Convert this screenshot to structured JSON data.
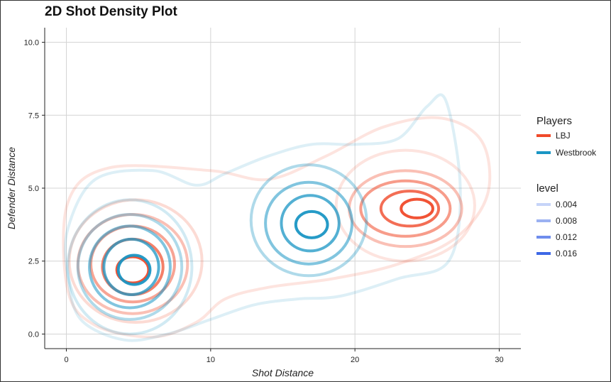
{
  "chart_data": {
    "type": "contour",
    "title": "2D Shot Density Plot",
    "xlabel": "Shot Distance",
    "ylabel": "Defender Distance",
    "xlim": [
      -1.5,
      31.5
    ],
    "ylim": [
      -0.5,
      10.5
    ],
    "x_ticks": [
      0,
      10,
      20,
      30
    ],
    "y_ticks": [
      0.0,
      2.5,
      5.0,
      7.5,
      10.0
    ],
    "x_tick_labels": [
      "0",
      "10",
      "20",
      "30"
    ],
    "y_tick_labels": [
      "0.0",
      "2.5",
      "5.0",
      "7.5",
      "10.0"
    ],
    "grid": true,
    "legend_position": "right",
    "players_legend": {
      "title": "Players",
      "entries": [
        {
          "label": "LBJ",
          "color": "#f04a2a"
        },
        {
          "label": "Westbrook",
          "color": "#1a96c4"
        }
      ]
    },
    "level_legend": {
      "title": "level",
      "entries": [
        {
          "label": "0.004",
          "color": "#c6d4f8"
        },
        {
          "label": "0.008",
          "color": "#9bb1f2"
        },
        {
          "label": "0.012",
          "color": "#6f8ded"
        },
        {
          "label": "0.016",
          "color": "#3d68e6"
        }
      ]
    },
    "series": [
      {
        "name": "LBJ",
        "color": "#f04a2a",
        "contours": [
          {
            "cx": 4.8,
            "cy": 2.5,
            "rx": 4.6,
            "ry": 2.1,
            "opacity": 0.2
          },
          {
            "cx": 4.6,
            "cy": 2.4,
            "rx": 3.8,
            "ry": 1.7,
            "opacity": 0.35
          },
          {
            "cx": 4.6,
            "cy": 2.4,
            "rx": 2.9,
            "ry": 1.3,
            "opacity": 0.5
          },
          {
            "cx": 4.6,
            "cy": 2.3,
            "rx": 2.1,
            "ry": 0.95,
            "opacity": 0.7
          },
          {
            "cx": 4.6,
            "cy": 2.2,
            "rx": 1.1,
            "ry": 0.45,
            "opacity": 0.95
          },
          {
            "cx": 23.5,
            "cy": 4.4,
            "rx": 4.8,
            "ry": 1.9,
            "opacity": 0.15
          },
          {
            "cx": 23.5,
            "cy": 4.3,
            "rx": 3.9,
            "ry": 1.3,
            "opacity": 0.35
          },
          {
            "cx": 23.5,
            "cy": 4.3,
            "rx": 3.1,
            "ry": 0.95,
            "opacity": 0.55
          },
          {
            "cx": 23.8,
            "cy": 4.3,
            "rx": 2.0,
            "ry": 0.6,
            "opacity": 0.8
          },
          {
            "cx": 24.3,
            "cy": 4.3,
            "rx": 1.1,
            "ry": 0.32,
            "opacity": 0.95
          }
        ],
        "outer_envelope": {
          "x": [
            0.1,
            3,
            10,
            14,
            18,
            22,
            26,
            28.8,
            29.2,
            27,
            23,
            18.5,
            14,
            11,
            9,
            6,
            2,
            0.1
          ],
          "y": [
            4.5,
            5.7,
            5.6,
            5.3,
            6.1,
            7.1,
            7.4,
            6.6,
            4.8,
            3.3,
            2.4,
            1.9,
            1.6,
            1.2,
            0.4,
            -0.1,
            0.3,
            1.5
          ]
        }
      },
      {
        "name": "Westbrook",
        "color": "#1a96c4",
        "contours": [
          {
            "cx": 4.4,
            "cy": 2.3,
            "rx": 4.3,
            "ry": 2.3,
            "opacity": 0.2
          },
          {
            "cx": 4.4,
            "cy": 2.3,
            "rx": 3.6,
            "ry": 1.8,
            "opacity": 0.35
          },
          {
            "cx": 4.4,
            "cy": 2.3,
            "rx": 2.8,
            "ry": 1.4,
            "opacity": 0.55
          },
          {
            "cx": 4.5,
            "cy": 2.3,
            "rx": 1.9,
            "ry": 0.95,
            "opacity": 0.75
          },
          {
            "cx": 4.7,
            "cy": 2.2,
            "rx": 1.1,
            "ry": 0.5,
            "opacity": 0.95
          },
          {
            "cx": 16.8,
            "cy": 3.9,
            "rx": 4.0,
            "ry": 1.9,
            "opacity": 0.35
          },
          {
            "cx": 16.8,
            "cy": 3.8,
            "rx": 3.0,
            "ry": 1.4,
            "opacity": 0.55
          },
          {
            "cx": 16.9,
            "cy": 3.8,
            "rx": 2.0,
            "ry": 0.95,
            "opacity": 0.75
          },
          {
            "cx": 17.0,
            "cy": 3.75,
            "rx": 1.1,
            "ry": 0.45,
            "opacity": 0.95
          }
        ],
        "outer_envelope": {
          "x": [
            0.1,
            2,
            6,
            9,
            11,
            14,
            17,
            20,
            23,
            25,
            26.3,
            27.3,
            26.5,
            23,
            19,
            16,
            13,
            10,
            7,
            4,
            1,
            0.1
          ],
          "y": [
            3.6,
            5.3,
            5.6,
            5.1,
            5.5,
            6.1,
            6.5,
            6.5,
            6.7,
            7.8,
            8.0,
            5.0,
            2.5,
            1.9,
            1.3,
            1.2,
            1.0,
            0.5,
            0.0,
            -0.2,
            0.5,
            2.0
          ]
        }
      }
    ]
  }
}
